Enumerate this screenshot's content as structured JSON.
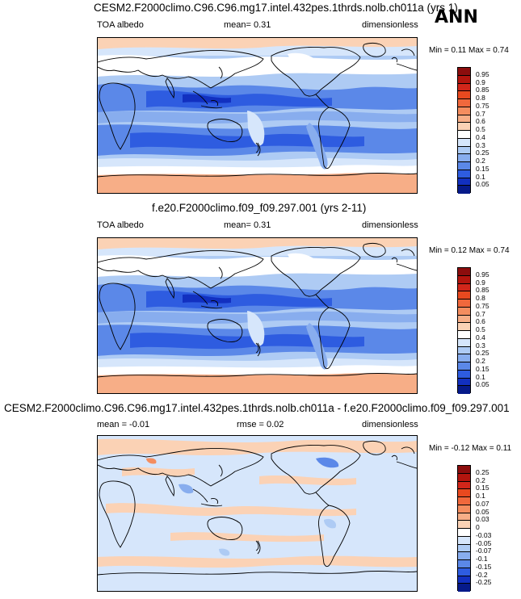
{
  "corner_label": "ANN",
  "panels": [
    {
      "title": "CESM2.F2000climo.C96.C96.mg17.intel.432pes.1thrds.nolb.ch011a (yrs 1)",
      "left_label": "TOA albedo",
      "center_label": "mean=  0.31",
      "right_label": "dimensionless",
      "minmax": "Min =  0.11 Max =  0.74",
      "colorbar": {
        "labels": [
          "0.95",
          "0.9",
          "0.85",
          "0.8",
          "0.75",
          "0.7",
          "0.6",
          "0.5",
          "0.4",
          "0.3",
          "0.25",
          "0.2",
          "0.15",
          "0.1",
          "0.05"
        ],
        "colors": [
          "#8c0d0d",
          "#b3150e",
          "#d1261a",
          "#e8491f",
          "#f0683c",
          "#f48d5f",
          "#f7ae87",
          "#fbd2b5",
          "#ffffff",
          "#d6e6fb",
          "#aecbf4",
          "#88adee",
          "#5b88e8",
          "#2e5ce0",
          "#1230c0",
          "#061a8a"
        ]
      },
      "map_style": "abs"
    },
    {
      "title": "f.e20.F2000climo.f09_f09.297.001 (yrs 2-11)",
      "left_label": "TOA albedo",
      "center_label": "mean=  0.31",
      "right_label": "dimensionless",
      "minmax": "Min =  0.12 Max =  0.74",
      "colorbar": {
        "labels": [
          "0.95",
          "0.9",
          "0.85",
          "0.8",
          "0.75",
          "0.7",
          "0.6",
          "0.5",
          "0.4",
          "0.3",
          "0.25",
          "0.2",
          "0.15",
          "0.1",
          "0.05"
        ],
        "colors": [
          "#8c0d0d",
          "#b3150e",
          "#d1261a",
          "#e8491f",
          "#f0683c",
          "#f48d5f",
          "#f7ae87",
          "#fbd2b5",
          "#ffffff",
          "#d6e6fb",
          "#aecbf4",
          "#88adee",
          "#5b88e8",
          "#2e5ce0",
          "#1230c0",
          "#061a8a"
        ]
      },
      "map_style": "abs"
    },
    {
      "title": "CESM2.F2000climo.C96.C96.mg17.intel.432pes.1thrds.nolb.ch011a - f.e20.F2000climo.f09_f09.297.001",
      "left_label": "mean = -0.01",
      "center_label": "rmse =  0.02",
      "right_label": "dimensionless",
      "minmax": "Min = -0.12 Max =  0.11",
      "colorbar": {
        "labels": [
          "0.25",
          "0.2",
          "0.15",
          "0.1",
          "0.07",
          "0.05",
          "0.03",
          "0",
          "-0.03",
          "-0.05",
          "-0.07",
          "-0.1",
          "-0.15",
          "-0.2",
          "-0.25"
        ],
        "colors": [
          "#8c0d0d",
          "#b3150e",
          "#d1261a",
          "#e8491f",
          "#f0683c",
          "#f48d5f",
          "#f7ae87",
          "#fbd2b5",
          "#ffffff",
          "#d6e6fb",
          "#aecbf4",
          "#88adee",
          "#5b88e8",
          "#2e5ce0",
          "#1230c0",
          "#061a8a"
        ]
      },
      "map_style": "diff"
    }
  ]
}
